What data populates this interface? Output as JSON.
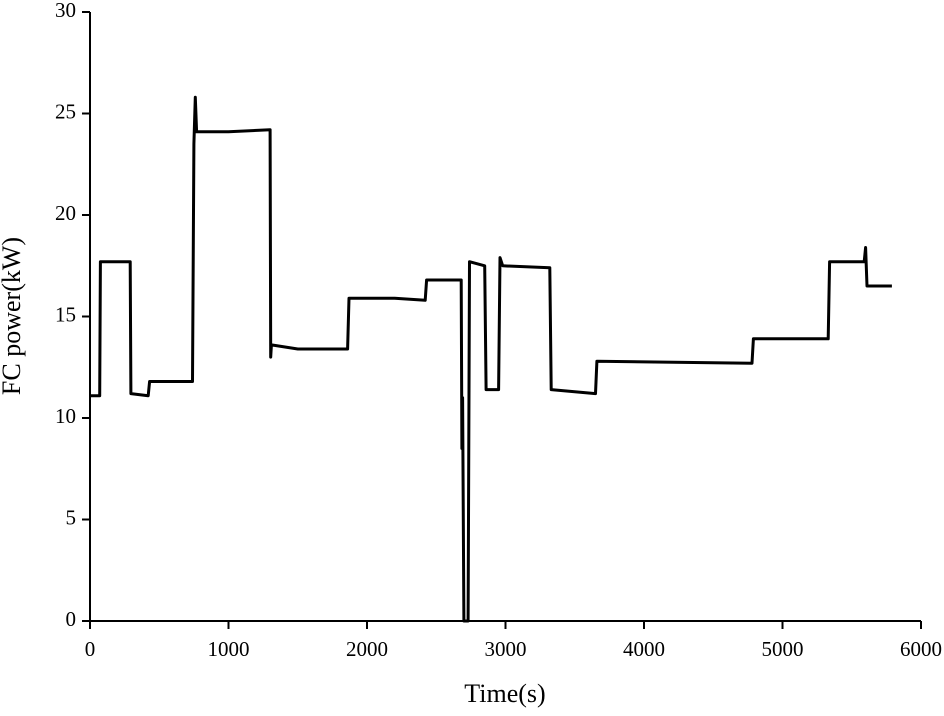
{
  "chart_data": {
    "type": "line",
    "x_label": "Time(s)",
    "y_label": "FC power(kW)",
    "x": [
      0,
      70,
      75,
      290,
      295,
      420,
      430,
      740,
      750,
      760,
      770,
      1000,
      1300,
      1305,
      1310,
      1500,
      1860,
      1870,
      2200,
      2420,
      2430,
      2680,
      2685,
      2690,
      2700,
      2730,
      2740,
      2850,
      2860,
      2950,
      2960,
      2980,
      3320,
      3330,
      3650,
      3660,
      4780,
      4790,
      5330,
      5340,
      5590,
      5600,
      5610,
      5790
    ],
    "series": [
      {
        "name": "FC power",
        "color": "#000000",
        "values": [
          11.1,
          11.1,
          17.7,
          17.7,
          11.2,
          11.1,
          11.8,
          11.8,
          23.5,
          25.8,
          24.1,
          24.1,
          24.2,
          13.0,
          13.6,
          13.4,
          13.4,
          15.9,
          15.9,
          15.8,
          16.8,
          16.8,
          8.5,
          11.0,
          0,
          0,
          17.7,
          17.5,
          11.4,
          11.4,
          17.9,
          17.5,
          17.4,
          11.4,
          11.2,
          12.8,
          12.7,
          13.9,
          13.9,
          17.7,
          17.7,
          18.4,
          16.5,
          16.5
        ]
      }
    ],
    "xlim": [
      0,
      6000
    ],
    "xticks": [
      0,
      1000,
      2000,
      3000,
      4000,
      5000,
      6000
    ],
    "ylim": [
      0,
      30
    ],
    "yticks": [
      0,
      5,
      10,
      15,
      20,
      25,
      30
    ]
  }
}
